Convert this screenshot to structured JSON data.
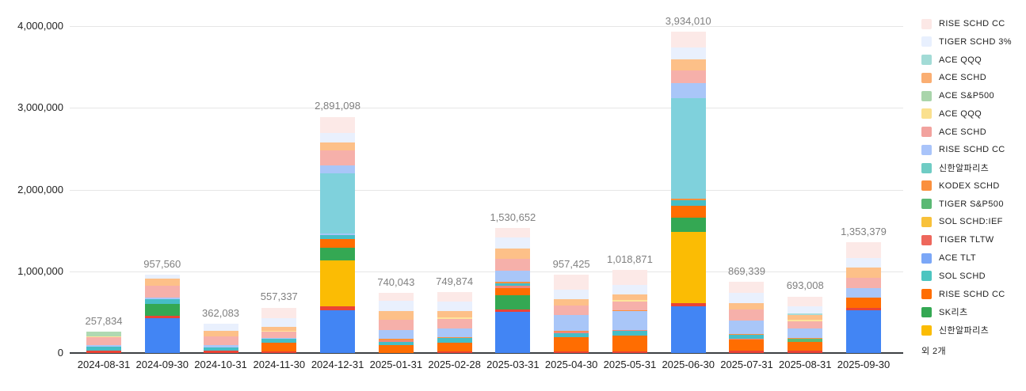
{
  "palette": {
    "blue": "#4285F4",
    "red": "#EA4335",
    "gold": "#FBBC04",
    "green_dark": "#34A853",
    "green_med": "#5BB974",
    "orange_vivid": "#FF6D01",
    "orange_med": "#FA903E",
    "cyan": "#46BDC6",
    "periwinkle": "#A9C6F8",
    "salmon": "#F6B0AA",
    "salmon_med": "#F0867C",
    "teal_big": "#7FD1DC",
    "teal_pale": "#A8DCD9",
    "yellow_pale": "#FDE49B",
    "green_pale": "#AFD9B2",
    "orange_light": "#FDC088",
    "lavender": "#E9F0FD",
    "pink_pale": "#FCE9E7"
  },
  "chart_data": {
    "type": "bar",
    "stacked": true,
    "title": "",
    "xlabel": "",
    "ylabel": "",
    "ylim": [
      0,
      4000000
    ],
    "grid": true,
    "legend_position": "right",
    "y_axis": {
      "ticks": [
        {
          "value": 0,
          "label": "0"
        },
        {
          "value": 1000000,
          "label": "1,000,000"
        },
        {
          "value": 2000000,
          "label": "2,000,000"
        },
        {
          "value": 3000000,
          "label": "3,000,000"
        },
        {
          "value": 4000000,
          "label": "4,000,000"
        }
      ]
    },
    "bars": [
      {
        "date": "2024-08-31",
        "total": 257834,
        "total_label": "257,834",
        "segments": [
          {
            "color": "red",
            "value": 28000
          },
          {
            "color": "cyan",
            "value": 48000
          },
          {
            "color": "periwinkle",
            "value": 19000
          },
          {
            "color": "salmon",
            "value": 95000
          },
          {
            "color": "yellow_pale",
            "value": 14000
          },
          {
            "color": "green_pale",
            "value": 53834
          }
        ]
      },
      {
        "date": "2024-09-30",
        "total": 957560,
        "total_label": "957,560",
        "segments": [
          {
            "color": "blue",
            "value": 430000
          },
          {
            "color": "red",
            "value": 25000
          },
          {
            "color": "green_dark",
            "value": 150000
          },
          {
            "color": "cyan",
            "value": 55000
          },
          {
            "color": "periwinkle",
            "value": 15000
          },
          {
            "color": "salmon",
            "value": 150000
          },
          {
            "color": "orange_light",
            "value": 90000
          },
          {
            "color": "lavender",
            "value": 42560
          }
        ]
      },
      {
        "date": "2024-10-31",
        "total": 362083,
        "total_label": "362,083",
        "segments": [
          {
            "color": "red",
            "value": 29000
          },
          {
            "color": "cyan",
            "value": 39000
          },
          {
            "color": "periwinkle",
            "value": 29000
          },
          {
            "color": "salmon",
            "value": 105000
          },
          {
            "color": "orange_light",
            "value": 65000
          },
          {
            "color": "lavender",
            "value": 95083
          }
        ]
      },
      {
        "date": "2024-11-30",
        "total": 557337,
        "total_label": "557,337",
        "segments": [
          {
            "color": "red",
            "value": 20000
          },
          {
            "color": "orange_vivid",
            "value": 110000
          },
          {
            "color": "cyan",
            "value": 45000
          },
          {
            "color": "periwinkle",
            "value": 10000
          },
          {
            "color": "salmon",
            "value": 75000
          },
          {
            "color": "yellow_pale",
            "value": 15000
          },
          {
            "color": "orange_light",
            "value": 45000
          },
          {
            "color": "lavender",
            "value": 107000
          },
          {
            "color": "pink_pale",
            "value": 130337
          }
        ]
      },
      {
        "date": "2024-12-31",
        "total": 2891098,
        "total_label": "2,891,098",
        "segments": [
          {
            "color": "blue",
            "value": 520000
          },
          {
            "color": "red",
            "value": 55000
          },
          {
            "color": "gold",
            "value": 560000
          },
          {
            "color": "green_dark",
            "value": 150000
          },
          {
            "color": "orange_vivid",
            "value": 110000
          },
          {
            "color": "cyan",
            "value": 45000
          },
          {
            "color": "periwinkle",
            "value": 20000
          },
          {
            "color": "teal_big",
            "value": 740000
          },
          {
            "color": "periwinkle",
            "value": 100000
          },
          {
            "color": "salmon",
            "value": 180000
          },
          {
            "color": "orange_light",
            "value": 95000
          },
          {
            "color": "lavender",
            "value": 120000
          },
          {
            "color": "pink_pale",
            "value": 196098
          }
        ]
      },
      {
        "date": "2025-01-31",
        "total": 740043,
        "total_label": "740,043",
        "segments": [
          {
            "color": "orange_vivid",
            "value": 95000
          },
          {
            "color": "cyan",
            "value": 40000
          },
          {
            "color": "salmon_med",
            "value": 18000
          },
          {
            "color": "orange_med",
            "value": 18000
          },
          {
            "color": "periwinkle",
            "value": 115000
          },
          {
            "color": "salmon",
            "value": 125000
          },
          {
            "color": "orange_light",
            "value": 105000
          },
          {
            "color": "lavender",
            "value": 120000
          },
          {
            "color": "pink_pale",
            "value": 104043
          }
        ]
      },
      {
        "date": "2025-02-28",
        "total": 749874,
        "total_label": "749,874",
        "segments": [
          {
            "color": "red",
            "value": 18000
          },
          {
            "color": "orange_vivid",
            "value": 110000
          },
          {
            "color": "cyan",
            "value": 55000
          },
          {
            "color": "orange_med",
            "value": 15000
          },
          {
            "color": "periwinkle",
            "value": 100000
          },
          {
            "color": "salmon",
            "value": 120000
          },
          {
            "color": "yellow_pale",
            "value": 15000
          },
          {
            "color": "orange_light",
            "value": 80000
          },
          {
            "color": "lavender",
            "value": 115000
          },
          {
            "color": "pink_pale",
            "value": 121874
          }
        ]
      },
      {
        "date": "2025-03-31",
        "total": 1530652,
        "total_label": "1,530,652",
        "segments": [
          {
            "color": "blue",
            "value": 500000
          },
          {
            "color": "red",
            "value": 28000
          },
          {
            "color": "green_dark",
            "value": 180000
          },
          {
            "color": "orange_vivid",
            "value": 90000
          },
          {
            "color": "salmon_med",
            "value": 28000
          },
          {
            "color": "cyan",
            "value": 26000
          },
          {
            "color": "orange_med",
            "value": 20000
          },
          {
            "color": "periwinkle",
            "value": 135000
          },
          {
            "color": "salmon",
            "value": 145000
          },
          {
            "color": "orange_light",
            "value": 125000
          },
          {
            "color": "lavender",
            "value": 135000
          },
          {
            "color": "pink_pale",
            "value": 118652
          }
        ]
      },
      {
        "date": "2025-04-30",
        "total": 957425,
        "total_label": "957,425",
        "segments": [
          {
            "color": "red",
            "value": 20000
          },
          {
            "color": "orange_vivid",
            "value": 175000
          },
          {
            "color": "cyan",
            "value": 48000
          },
          {
            "color": "salmon_med",
            "value": 15000
          },
          {
            "color": "orange_med",
            "value": 10000
          },
          {
            "color": "periwinkle",
            "value": 200000
          },
          {
            "color": "salmon",
            "value": 110000
          },
          {
            "color": "orange_light",
            "value": 80000
          },
          {
            "color": "lavender",
            "value": 120000
          },
          {
            "color": "pink_pale",
            "value": 179425
          }
        ]
      },
      {
        "date": "2025-05-31",
        "total": 1018871,
        "total_label": "1,018,871",
        "segments": [
          {
            "color": "red",
            "value": 18000
          },
          {
            "color": "orange_vivid",
            "value": 200000
          },
          {
            "color": "cyan",
            "value": 52000
          },
          {
            "color": "salmon_med",
            "value": 15000
          },
          {
            "color": "periwinkle",
            "value": 230000
          },
          {
            "color": "orange_med",
            "value": 12000
          },
          {
            "color": "salmon",
            "value": 105000
          },
          {
            "color": "yellow_pale",
            "value": 18000
          },
          {
            "color": "orange_light",
            "value": 65000
          },
          {
            "color": "lavender",
            "value": 120000
          },
          {
            "color": "pink_pale",
            "value": 183871
          }
        ]
      },
      {
        "date": "2025-06-30",
        "total": 3934010,
        "total_label": "3,934,010",
        "segments": [
          {
            "color": "blue",
            "value": 570000
          },
          {
            "color": "red",
            "value": 45000
          },
          {
            "color": "gold",
            "value": 865000
          },
          {
            "color": "green_dark",
            "value": 180000
          },
          {
            "color": "orange_vivid",
            "value": 145000
          },
          {
            "color": "cyan",
            "value": 62000
          },
          {
            "color": "orange_med",
            "value": 25000
          },
          {
            "color": "teal_big",
            "value": 1230000
          },
          {
            "color": "periwinkle",
            "value": 185000
          },
          {
            "color": "salmon",
            "value": 155000
          },
          {
            "color": "orange_light",
            "value": 135000
          },
          {
            "color": "lavender",
            "value": 140000
          },
          {
            "color": "pink_pale",
            "value": 197010
          }
        ]
      },
      {
        "date": "2025-07-31",
        "total": 869339,
        "total_label": "869,339",
        "segments": [
          {
            "color": "red",
            "value": 28000
          },
          {
            "color": "orange_vivid",
            "value": 135000
          },
          {
            "color": "salmon_med",
            "value": 15000
          },
          {
            "color": "cyan",
            "value": 45000
          },
          {
            "color": "orange_med",
            "value": 12000
          },
          {
            "color": "periwinkle",
            "value": 165000
          },
          {
            "color": "salmon",
            "value": 135000
          },
          {
            "color": "orange_light",
            "value": 75000
          },
          {
            "color": "lavender",
            "value": 125000
          },
          {
            "color": "pink_pale",
            "value": 134339
          }
        ]
      },
      {
        "date": "2025-08-31",
        "total": 693008,
        "total_label": "693,008",
        "segments": [
          {
            "color": "red",
            "value": 28000
          },
          {
            "color": "orange_vivid",
            "value": 105000
          },
          {
            "color": "green_med",
            "value": 38000
          },
          {
            "color": "orange_med",
            "value": 15000
          },
          {
            "color": "periwinkle",
            "value": 115000
          },
          {
            "color": "salmon",
            "value": 88000
          },
          {
            "color": "yellow_pale",
            "value": 18000
          },
          {
            "color": "orange_light",
            "value": 58000
          },
          {
            "color": "teal_pale",
            "value": 18000
          },
          {
            "color": "lavender",
            "value": 90000
          },
          {
            "color": "pink_pale",
            "value": 120008
          }
        ]
      },
      {
        "date": "2025-09-30",
        "total": 1353379,
        "total_label": "1,353,379",
        "segments": [
          {
            "color": "blue",
            "value": 520000
          },
          {
            "color": "red",
            "value": 30000
          },
          {
            "color": "orange_vivid",
            "value": 125000
          },
          {
            "color": "periwinkle",
            "value": 115000
          },
          {
            "color": "salmon",
            "value": 135000
          },
          {
            "color": "orange_light",
            "value": 125000
          },
          {
            "color": "lavender",
            "value": 115000
          },
          {
            "color": "pink_pale",
            "value": 188379
          }
        ]
      }
    ]
  },
  "legend": {
    "items": [
      {
        "label": "RISE SCHD CC",
        "color": "#FCE8E6"
      },
      {
        "label": "TIGER SCHD 3%",
        "color": "#E8F0FE"
      },
      {
        "label": "ACE QQQ",
        "color": "#A2DBD6"
      },
      {
        "label": "ACE SCHD",
        "color": "#FAAE72"
      },
      {
        "label": "ACE S&P500",
        "color": "#A9D5AB"
      },
      {
        "label": "ACE QQQ",
        "color": "#FAE08E"
      },
      {
        "label": "ACE SCHD",
        "color": "#F2A29E"
      },
      {
        "label": "RISE SCHD CC",
        "color": "#A9C4FA"
      },
      {
        "label": "신한알파리츠",
        "color": "#6FCCC4"
      },
      {
        "label": "KODEX SCHD",
        "color": "#FA903E"
      },
      {
        "label": "TIGER S&P500",
        "color": "#5BB974"
      },
      {
        "label": "SOL SCHD:IEF",
        "color": "#F8C13A"
      },
      {
        "label": "TIGER TLTW",
        "color": "#EE675C"
      },
      {
        "label": "ACE TLT",
        "color": "#7BA7F7"
      },
      {
        "label": "SOL SCHD",
        "color": "#4DC5C0"
      },
      {
        "label": "RISE SCHD CC",
        "color": "#FF6D01"
      },
      {
        "label": "SK리츠",
        "color": "#34A853"
      },
      {
        "label": "신한알파리츠",
        "color": "#FBBC04"
      }
    ],
    "more_label": "외 2개"
  }
}
